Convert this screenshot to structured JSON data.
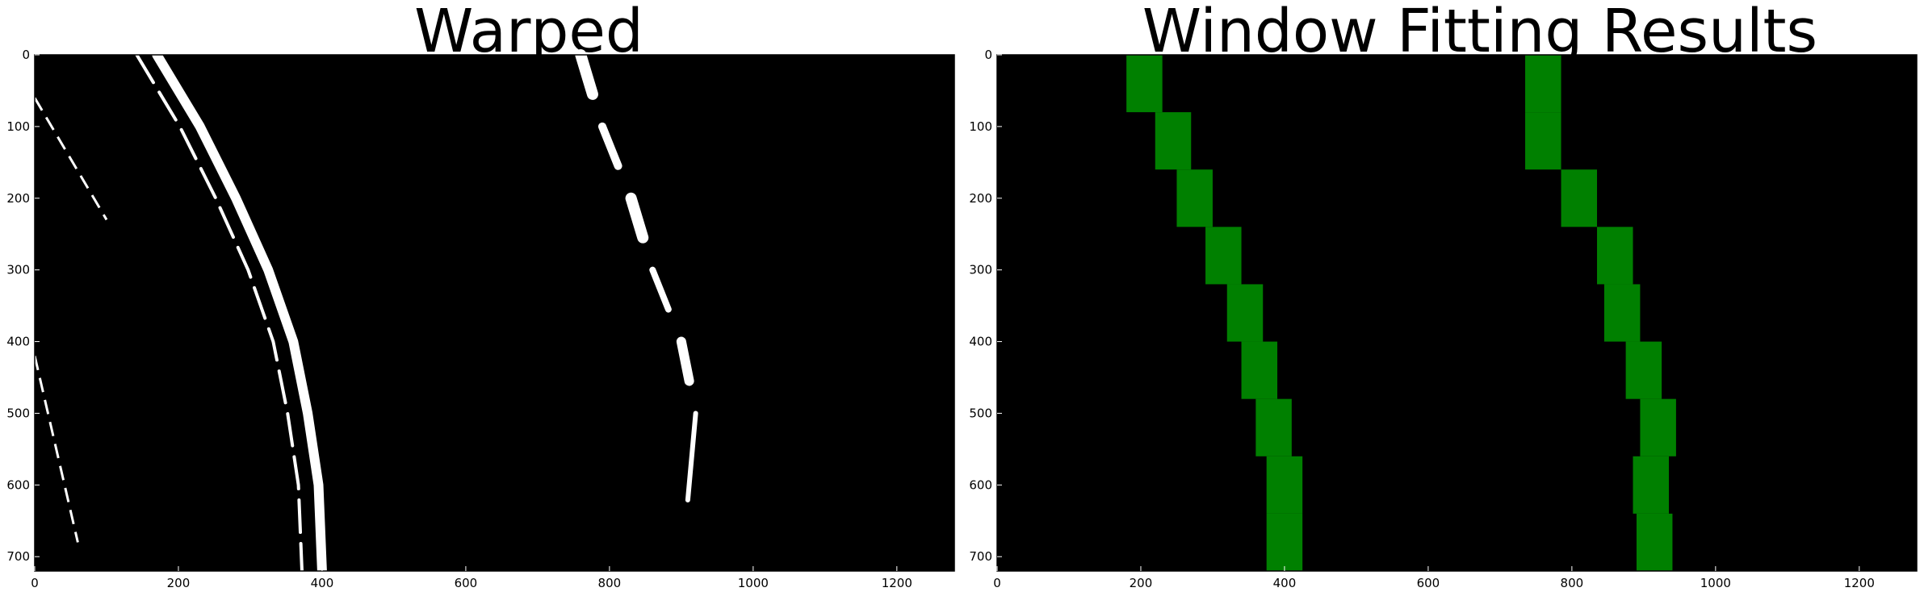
{
  "figure": {
    "background": "#ffffff"
  },
  "chart_data": [
    {
      "type": "image",
      "title": "Warped",
      "image_content": "binary warped lane-line image (white lane pixels on black)",
      "xlim": [
        0,
        1280
      ],
      "ylim": [
        720,
        0
      ],
      "xticks": [
        0,
        200,
        400,
        600,
        800,
        1000,
        1200
      ],
      "yticks": [
        0,
        100,
        200,
        300,
        400,
        500,
        600,
        700
      ],
      "background_color": "#000000",
      "pixel_color": "#ffffff",
      "left_line_x_at_y": {
        "y": [
          0,
          100,
          200,
          300,
          400,
          500,
          600,
          720
        ],
        "x": [
          170,
          230,
          280,
          325,
          360,
          380,
          395,
          400
        ]
      },
      "right_line_x_at_y": {
        "y": [
          0,
          100,
          200,
          300,
          400,
          500,
          600,
          720
        ],
        "x": [
          760,
          790,
          830,
          860,
          900,
          920,
          900,
          900
        ]
      }
    },
    {
      "type": "image",
      "title": "Window Fitting Results",
      "image_content": "sliding-window lane fitting result (green windows on black)",
      "xlim": [
        0,
        1280
      ],
      "ylim": [
        720,
        0
      ],
      "xticks": [
        0,
        200,
        400,
        600,
        800,
        1000,
        1200
      ],
      "yticks": [
        0,
        100,
        200,
        300,
        400,
        500,
        600,
        700
      ],
      "background_color": "#000000",
      "window_color": "#008000",
      "window_width": 50,
      "window_height": 80,
      "left_window_centers_x": [
        205,
        245,
        275,
        315,
        345,
        365,
        385,
        400,
        400
      ],
      "right_window_centers_x": [
        760,
        760,
        810,
        860,
        870,
        900,
        920,
        910,
        915
      ]
    }
  ]
}
